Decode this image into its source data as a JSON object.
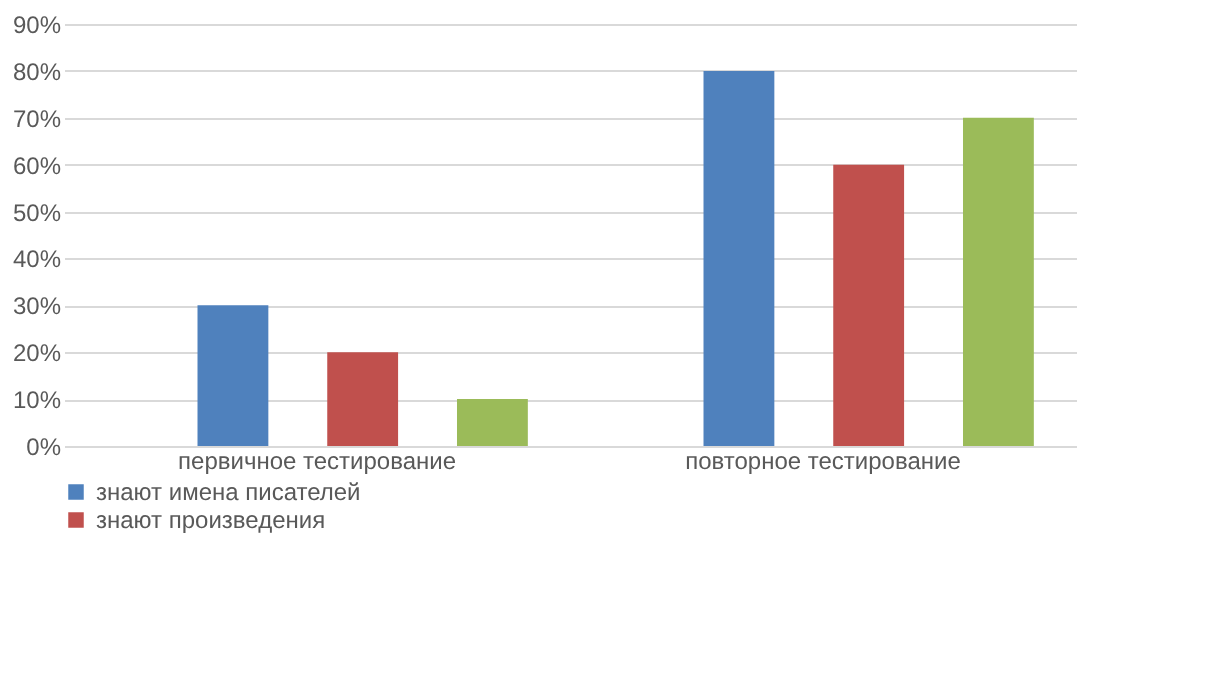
{
  "chart_data": {
    "type": "bar",
    "categories": [
      "первичное тестирование",
      "повторное тестирование"
    ],
    "series": [
      {
        "name": "знают имена писателей",
        "color": "#4f81bd",
        "values": [
          30,
          80
        ]
      },
      {
        "name": "знают произведения",
        "color": "#c0504d",
        "values": [
          20,
          60
        ]
      },
      {
        "color": "#9bbb59",
        "values": [
          10,
          70
        ]
      }
    ],
    "ylim": [
      0,
      90
    ],
    "yticks": [
      {
        "value": 0,
        "label": "0%"
      },
      {
        "value": 10,
        "label": "10%"
      },
      {
        "value": 20,
        "label": "20%"
      },
      {
        "value": 30,
        "label": "30%"
      },
      {
        "value": 40,
        "label": "40%"
      },
      {
        "value": 50,
        "label": "50%"
      },
      {
        "value": 60,
        "label": "60%"
      },
      {
        "value": 70,
        "label": "70%"
      },
      {
        "value": 80,
        "label": "80%"
      },
      {
        "value": 90,
        "label": "90%"
      }
    ],
    "grid": "y",
    "legend": "bottom"
  }
}
